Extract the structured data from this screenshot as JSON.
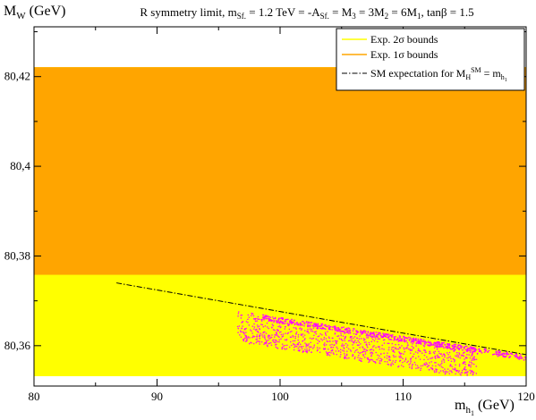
{
  "chart_data": {
    "type": "scatter",
    "title": {
      "pre": "R symmetry limit, m",
      "sub1": "Sf.",
      "mid1": " = 1.2 TeV = -A",
      "sub2": "Sf.",
      "mid2": " = M",
      "sub3": "3",
      "mid3": " = 3M",
      "sub4": "2",
      "mid4": " = 6M",
      "sub5": "1",
      "post": ", tanβ = 1.5"
    },
    "ylabel": {
      "main": "M",
      "sub": "W",
      "post": " (GeV)"
    },
    "xlabel": {
      "main": "m",
      "sub": "h",
      "subsub": "1",
      "post": " (GeV)"
    },
    "xlim": [
      80,
      120
    ],
    "ylim": [
      80.351,
      80.4311
    ],
    "x_ticks": [
      80,
      90,
      100,
      110,
      120
    ],
    "x_tick_labels": [
      "80",
      "90",
      "100",
      "110",
      "120"
    ],
    "y_ticks": [
      80.36,
      80.38,
      80.4,
      80.42
    ],
    "y_tick_labels": [
      "80,36",
      "80,38",
      "80,4",
      "80,42"
    ],
    "bands": [
      {
        "name": "Exp. 2σ bounds",
        "lower": 80.3532,
        "upper": 80.4221,
        "color": "#ffff00"
      },
      {
        "name": "Exp. 1σ bounds",
        "lower": 80.3758,
        "upper": 80.4221,
        "color": "#ffa500"
      }
    ],
    "sm_line": {
      "name": {
        "pre": "SM expectation for M",
        "sub": "H",
        "sup": "SM",
        "mid": " = m",
        "sub2": "h",
        "subsub": "1"
      },
      "x": [
        86.7,
        120
      ],
      "y": [
        80.374,
        80.358
      ],
      "color": "#000000",
      "style": "dash-dot"
    },
    "scatter": {
      "color": "#ff00ff",
      "x_range": [
        96.2,
        120
      ],
      "upper_edge_y": [
        80.368,
        80.358
      ],
      "lower_spread": 0.007
    },
    "legend_placement": "top-right",
    "grid": false
  }
}
